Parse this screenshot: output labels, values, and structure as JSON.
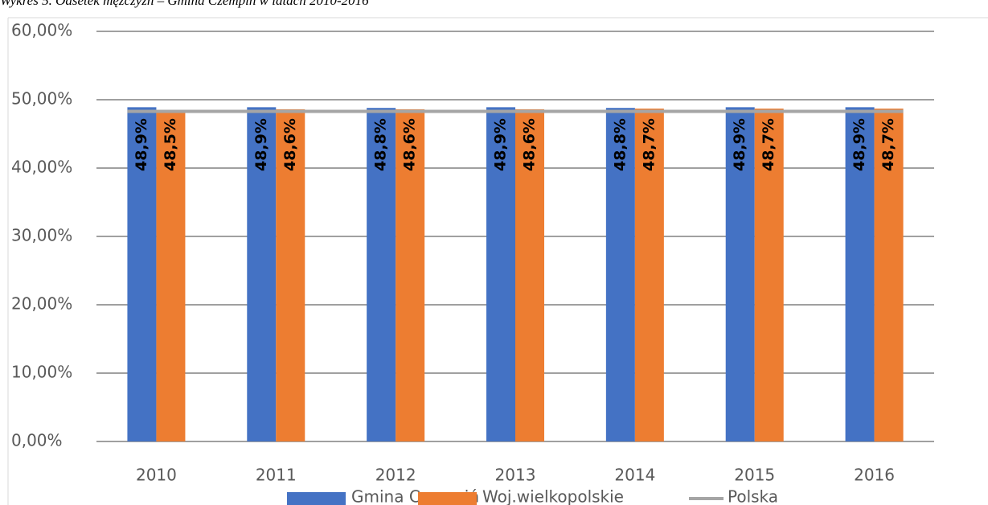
{
  "chart_data": {
    "type": "bar",
    "title": "Wykres 5. Odsetek mężczyzn – Gmina Czempiń w latach 2010-2016",
    "categories": [
      "2010",
      "2011",
      "2012",
      "2013",
      "2014",
      "2015",
      "2016"
    ],
    "series": [
      {
        "name": "Gmina Czempiń",
        "color": "#4472c4",
        "type": "bar",
        "values": [
          48.9,
          48.9,
          48.8,
          48.9,
          48.8,
          48.9,
          48.9
        ],
        "value_labels": [
          "48,9%",
          "48,9%",
          "48,8%",
          "48,9%",
          "48,8%",
          "48,9%",
          "48,9%"
        ]
      },
      {
        "name": "Woj.wielkopolskie",
        "color": "#ed7d31",
        "type": "bar",
        "values": [
          48.5,
          48.6,
          48.6,
          48.6,
          48.7,
          48.7,
          48.7
        ],
        "value_labels": [
          "48,5%",
          "48,6%",
          "48,6%",
          "48,6%",
          "48,7%",
          "48,7%",
          "48,7%"
        ]
      },
      {
        "name": "Polska",
        "color": "#a5a5a5",
        "type": "line",
        "values": [
          48.3,
          48.3,
          48.3,
          48.3,
          48.3,
          48.3,
          48.3
        ]
      }
    ],
    "ylim": [
      0,
      60
    ],
    "yticks": [
      {
        "value": 0,
        "label": "0,00%"
      },
      {
        "value": 10,
        "label": "10,00%"
      },
      {
        "value": 20,
        "label": "20,00%"
      },
      {
        "value": 30,
        "label": "30,00%"
      },
      {
        "value": 40,
        "label": "40,00%"
      },
      {
        "value": 50,
        "label": "50,00%"
      },
      {
        "value": 60,
        "label": "60,00%"
      }
    ],
    "grid": true,
    "legend": "bottom"
  }
}
